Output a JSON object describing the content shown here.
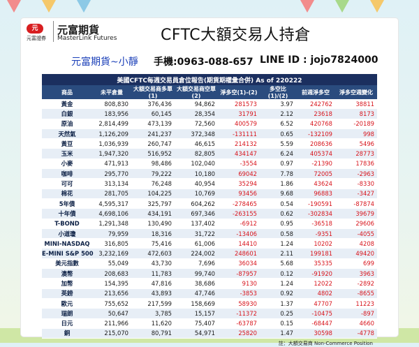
{
  "header": {
    "logo_mark": "元",
    "logo_sub": "元富證券",
    "logo_name": "元富期貨",
    "logo_en": "MasterLink Futures",
    "title": "CFTC大額交易人持倉",
    "contact_name": "元富期貨~小靜",
    "contact_phone": "手機:0963-088-657",
    "contact_line": "LINE ID : jojo7824000"
  },
  "table": {
    "caption": "美國CFTC每週交易員倉位報告(期貨期權彙合併) As of  220222",
    "columns": [
      "商品",
      "未平倉量",
      "大額交易商多單(1)",
      "大額交易商空單(2)",
      "淨多空(1)-(2)",
      "多空比(1)/(2)",
      "前週淨多空",
      "淨多空週變化"
    ],
    "rows": [
      [
        "黃金",
        "808,830",
        "376,436",
        "94,862",
        "281573",
        "3.97",
        "242762",
        "38811"
      ],
      [
        "白銀",
        "183,956",
        "60,145",
        "28,354",
        "31791",
        "2.12",
        "23618",
        "8173"
      ],
      [
        "原油",
        "2,814,499",
        "473,139",
        "72,560",
        "400579",
        "6.52",
        "420768",
        "-20189"
      ],
      [
        "天然氣",
        "1,126,209",
        "241,237",
        "372,348",
        "-131111",
        "0.65",
        "-132109",
        "998"
      ],
      [
        "黃豆",
        "1,036,939",
        "260,747",
        "46,615",
        "214132",
        "5.59",
        "208636",
        "5496"
      ],
      [
        "玉米",
        "1,947,320",
        "516,952",
        "82,805",
        "434147",
        "6.24",
        "405374",
        "28773"
      ],
      [
        "小麥",
        "471,913",
        "98,486",
        "102,040",
        "-3554",
        "0.97",
        "-21390",
        "17836"
      ],
      [
        "咖啡",
        "295,770",
        "79,222",
        "10,180",
        "69042",
        "7.78",
        "72005",
        "-2963"
      ],
      [
        "可可",
        "313,134",
        "76,248",
        "40,954",
        "35294",
        "1.86",
        "43624",
        "-8330"
      ],
      [
        "棉花",
        "281,705",
        "104,225",
        "10,769",
        "93456",
        "9.68",
        "96883",
        "-3427"
      ],
      [
        "5年債",
        "4,595,317",
        "325,797",
        "604,262",
        "-278465",
        "0.54",
        "-190591",
        "-87874"
      ],
      [
        "十年債",
        "4,698,106",
        "434,191",
        "697,346",
        "-263155",
        "0.62",
        "-302834",
        "39679"
      ],
      [
        "T-BOND",
        "1,291,348",
        "130,490",
        "137,402",
        "-6912",
        "0.95",
        "-36518",
        "29606"
      ],
      [
        "小道瓊",
        "79,959",
        "18,316",
        "31,722",
        "-13406",
        "0.58",
        "-9351",
        "-4055"
      ],
      [
        "MINI-NASDAQ",
        "316,805",
        "75,416",
        "61,006",
        "14410",
        "1.24",
        "10202",
        "4208"
      ],
      [
        "E-MINI S&P 500",
        "3,232,169",
        "472,603",
        "224,002",
        "248601",
        "2.11",
        "199181",
        "49420"
      ],
      [
        "美元指數",
        "55,049",
        "43,730",
        "7,696",
        "36034",
        "5.68",
        "35335",
        "699"
      ],
      [
        "澳幣",
        "208,683",
        "11,783",
        "99,740",
        "-87957",
        "0.12",
        "-91920",
        "3963"
      ],
      [
        "加幣",
        "154,395",
        "47,816",
        "38,686",
        "9130",
        "1.24",
        "12022",
        "-2892"
      ],
      [
        "英鎊",
        "213,656",
        "43,893",
        "47,746",
        "-3853",
        "0.92",
        "4802",
        "-8655"
      ],
      [
        "歐元",
        "755,652",
        "217,599",
        "158,669",
        "58930",
        "1.37",
        "47707",
        "11223"
      ],
      [
        "瑞朗",
        "50,647",
        "3,785",
        "15,157",
        "-11372",
        "0.25",
        "-10475",
        "-897"
      ],
      [
        "日元",
        "211,966",
        "11,620",
        "75,407",
        "-63787",
        "0.15",
        "-68447",
        "4660"
      ],
      [
        "銅",
        "215,070",
        "80,791",
        "54,971",
        "25820",
        "1.47",
        "30598",
        "-4778"
      ]
    ],
    "note": "註：大額交易商 Non-Commerce Position"
  }
}
